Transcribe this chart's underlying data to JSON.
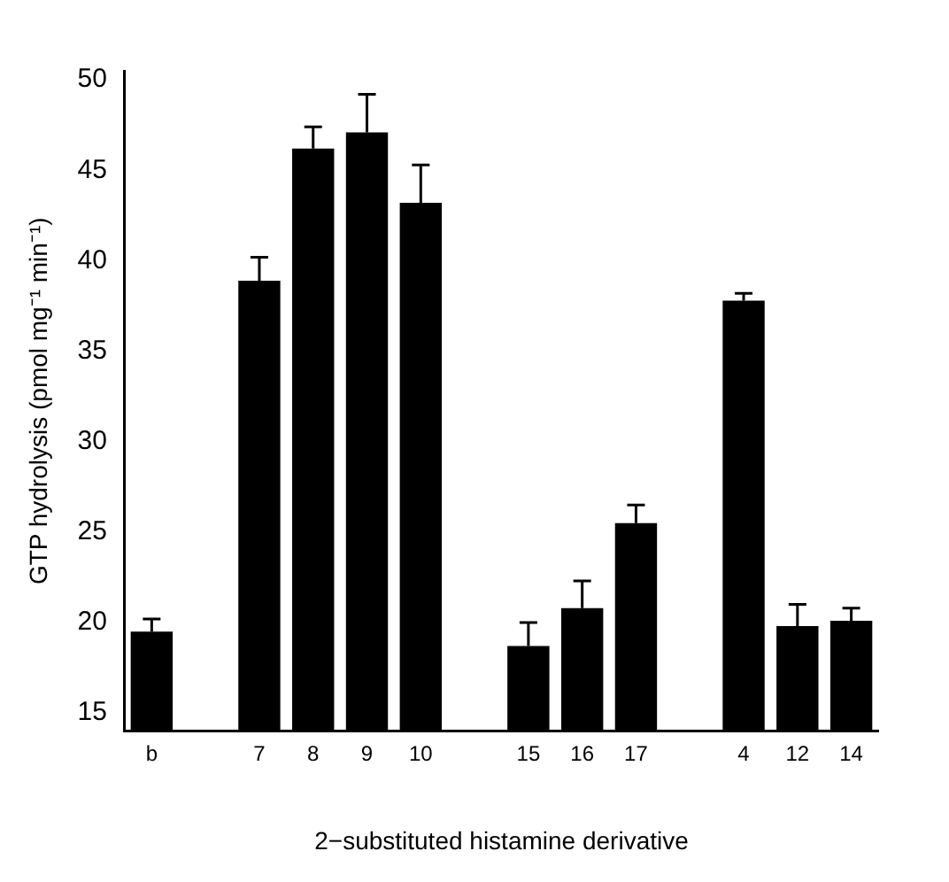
{
  "chart_data": {
    "type": "bar",
    "xlabel": "2−substituted histamine derivative",
    "ylabel": "GTP hydrolysis (pmol mg⁻¹ min⁻¹)",
    "categories": [
      "b",
      null,
      "7",
      "8",
      "9",
      "10",
      null,
      "15",
      "16",
      "17",
      null,
      "4",
      "12",
      "14"
    ],
    "values": [
      19.5,
      null,
      38.9,
      46.2,
      47.1,
      43.2,
      null,
      18.7,
      20.8,
      25.5,
      null,
      37.8,
      19.8,
      20.1
    ],
    "errors": [
      [
        19.5,
        20.2
      ],
      null,
      [
        38.9,
        40.2
      ],
      [
        46.2,
        47.4
      ],
      [
        47.1,
        49.2
      ],
      [
        43.2,
        45.3
      ],
      null,
      [
        18.7,
        20.0
      ],
      [
        20.8,
        22.3
      ],
      [
        25.5,
        26.5
      ],
      null,
      [
        37.8,
        38.2
      ],
      [
        19.8,
        21.0
      ],
      [
        20.1,
        20.8
      ]
    ],
    "color": "#000000",
    "ylim": [
      14,
      50.5
    ],
    "yticks": [
      15,
      20,
      25,
      30,
      35,
      40,
      45,
      50
    ],
    "grid": false,
    "legend": false
  }
}
